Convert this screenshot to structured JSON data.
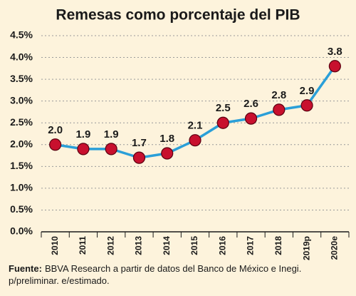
{
  "chart_data": {
    "type": "line",
    "title": "Remesas como porcentaje del PIB",
    "categories": [
      "2010",
      "2011",
      "2012",
      "2013",
      "2014",
      "2015",
      "2016",
      "2017",
      "2018",
      "2019p",
      "2020e"
    ],
    "series": [
      {
        "color": "#2a9fd8",
        "marker_color": "#c8102e",
        "values": [
          2.0,
          1.9,
          1.9,
          1.7,
          1.8,
          2.1,
          2.5,
          2.6,
          2.8,
          2.9,
          3.8
        ],
        "value_labels": [
          "2.0",
          "1.9",
          "1.9",
          "1.7",
          "1.8",
          "2.1",
          "2.5",
          "2.6",
          "2.8",
          "2.9",
          "3.8"
        ]
      }
    ],
    "ylim": [
      0,
      4.5
    ],
    "yticks": [
      {
        "value": 0,
        "label": "0.0%"
      },
      {
        "value": 0.5,
        "label": "0.5%"
      },
      {
        "value": 1,
        "label": "1.0%"
      },
      {
        "value": 1.5,
        "label": "1.5%"
      },
      {
        "value": 2,
        "label": "2.0%"
      },
      {
        "value": 2.5,
        "label": "2.5%"
      },
      {
        "value": 3,
        "label": "3.0%"
      },
      {
        "value": 3.5,
        "label": "3.5%"
      },
      {
        "value": 4,
        "label": "4.0%"
      },
      {
        "value": 4.5,
        "label": "4.5%"
      }
    ],
    "grid": true,
    "source_label": "Fuente:",
    "source_lines": [
      "BBVA Research a partir de datos del Banco de México e Inegi.",
      "p/preliminar. e/estimado."
    ]
  }
}
